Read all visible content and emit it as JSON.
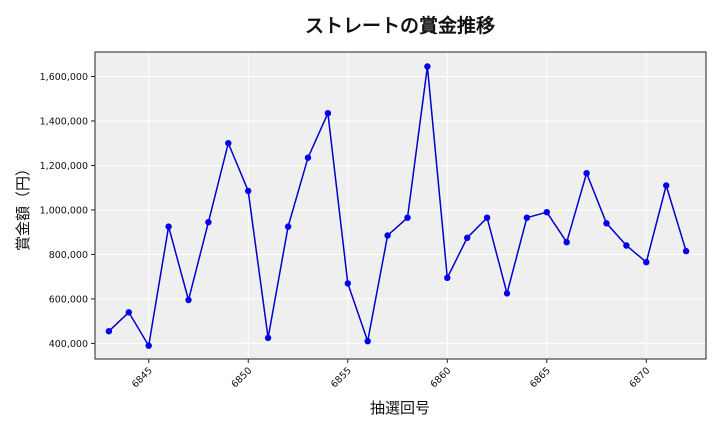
{
  "chart_data": {
    "type": "line",
    "title": "ストレートの賞金推移",
    "xlabel": "抽選回号",
    "ylabel": "賞金額（円）",
    "x": [
      6843,
      6844,
      6845,
      6846,
      6847,
      6848,
      6849,
      6850,
      6851,
      6852,
      6853,
      6854,
      6855,
      6856,
      6857,
      6858,
      6859,
      6860,
      6861,
      6862,
      6863,
      6864,
      6865,
      6866,
      6867,
      6868,
      6869,
      6870,
      6871,
      6872
    ],
    "series": [
      {
        "values": [
          455000,
          540000,
          390000,
          925000,
          595000,
          945000,
          1300000,
          1085000,
          425000,
          925000,
          1235000,
          1435000,
          670000,
          410000,
          885000,
          965000,
          1645000,
          695000,
          875000,
          965000,
          625000,
          965000,
          990000,
          855000,
          1165000,
          940000,
          840000,
          765000,
          1110000,
          815000
        ]
      }
    ],
    "xlim": [
      6842.3,
      6873.0
    ],
    "ylim": [
      330000,
      1710000
    ],
    "xticks": [
      6845,
      6850,
      6855,
      6860,
      6865,
      6870
    ],
    "yticks": [
      400000,
      600000,
      800000,
      1000000,
      1200000,
      1400000,
      1600000
    ],
    "ytick_labels": [
      "400,000",
      "600,000",
      "800,000",
      "1,000,000",
      "1,200,000",
      "1,400,000",
      "1,600,000"
    ],
    "grid": true,
    "colors": {
      "line": "#0000cc",
      "marker": "#0000ee",
      "background": "#efefef"
    }
  }
}
